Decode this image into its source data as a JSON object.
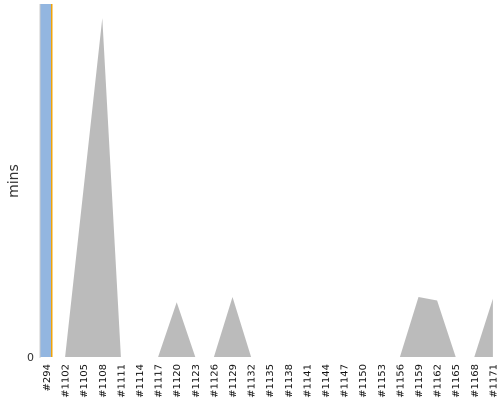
{
  "chart_data": {
    "type": "area",
    "title": "",
    "xlabel": "",
    "ylabel": "mins",
    "ylim": [
      0,
      100
    ],
    "y_tick_labels": [
      "0"
    ],
    "grid": false,
    "x_tick_labels": [
      "#294",
      "#1102",
      "#1105",
      "#1108",
      "#1111",
      "#1114",
      "#1117",
      "#1120",
      "#1123",
      "#1126",
      "#1129",
      "#1132",
      "#1135",
      "#1138",
      "#1141",
      "#1144",
      "#1147",
      "#1150",
      "#1153",
      "#1156",
      "#1159",
      "#1162",
      "#1165",
      "#1168",
      "#1171"
    ],
    "series": [
      {
        "color": "#bbbbbb",
        "points": [
          {
            "x": "#1102",
            "y": 0
          },
          {
            "x": "#1108",
            "y": 96
          },
          {
            "x": "#1111",
            "y": 0
          },
          {
            "x": "#1117",
            "y": 0
          },
          {
            "x": "#1120",
            "y": 15.5
          },
          {
            "x": "#1123",
            "y": 0
          },
          {
            "x": "#1126",
            "y": 0
          },
          {
            "x": "#1129",
            "y": 17
          },
          {
            "x": "#1132",
            "y": 0
          },
          {
            "x": "#1156",
            "y": 0
          },
          {
            "x": "#1159",
            "y": 17
          },
          {
            "x": "#1162",
            "y": 16
          },
          {
            "x": "#1165",
            "y": 0
          },
          {
            "x": "#1168",
            "y": 0
          },
          {
            "x": "#1171",
            "y": 16.5
          }
        ]
      }
    ],
    "highlight": {
      "x": "#294",
      "y": 100,
      "color": "#93b6e0",
      "edge_color": "#f0a30a"
    }
  }
}
